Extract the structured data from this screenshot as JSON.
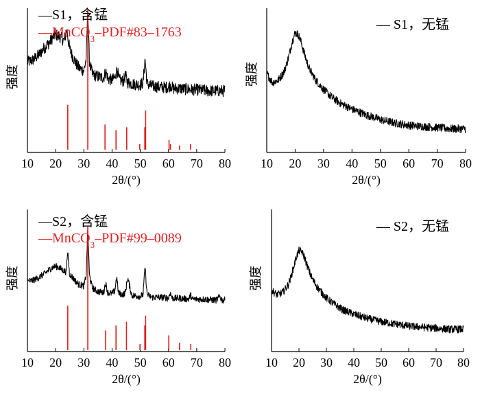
{
  "chart_data": [
    {
      "type": "line",
      "panel": "top-left",
      "xlabel": "2θ/(°)",
      "ylabel": "强度",
      "xlim": [
        10,
        80
      ],
      "xticks": [
        10,
        20,
        30,
        40,
        50,
        60,
        70,
        80
      ],
      "legend": [
        "—S1，含锰",
        "—MnCO₃–PDF#83–1763"
      ],
      "legend_position": "top-left",
      "series": [
        {
          "name": "S1，含锰",
          "color": "#000000",
          "noise": 0.05,
          "x": [
            10,
            12,
            14,
            16,
            18,
            19,
            20,
            21,
            22,
            23,
            24,
            24.5,
            25,
            26,
            27,
            28,
            29,
            30,
            30.8,
            31.4,
            32,
            33,
            35,
            37,
            37.8,
            38.6,
            40,
            41,
            41.8,
            42.5,
            44,
            44.8,
            45.5,
            47,
            50,
            51,
            51.7,
            52.4,
            54,
            58,
            60,
            60.8,
            61.6,
            64,
            68,
            70,
            74,
            80
          ],
          "y": [
            0.56,
            0.58,
            0.62,
            0.68,
            0.73,
            0.77,
            0.79,
            0.78,
            0.76,
            0.74,
            0.83,
            0.74,
            0.67,
            0.61,
            0.56,
            0.52,
            0.5,
            0.49,
            0.58,
            1.0,
            0.56,
            0.46,
            0.44,
            0.43,
            0.48,
            0.42,
            0.41,
            0.43,
            0.5,
            0.41,
            0.4,
            0.45,
            0.39,
            0.38,
            0.37,
            0.39,
            0.59,
            0.38,
            0.36,
            0.35,
            0.35,
            0.37,
            0.34,
            0.34,
            0.33,
            0.33,
            0.32,
            0.32
          ]
        },
        {
          "name": "MnCO₃–PDF#83–1763",
          "type": "stick",
          "color": "#e02020",
          "x": [
            24.3,
            31.4,
            37.5,
            41.4,
            45.2,
            49.8,
            51.6,
            51.9,
            60.2,
            60.7,
            63.9,
            67.8
          ],
          "y": [
            0.32,
            1.0,
            0.18,
            0.14,
            0.16,
            0.04,
            0.16,
            0.28,
            0.07,
            0.04,
            0.03,
            0.04
          ]
        }
      ]
    },
    {
      "type": "line",
      "panel": "top-right",
      "xlabel": "2θ/(°)",
      "ylabel": "强度",
      "xlim": [
        10,
        80
      ],
      "xticks": [
        10,
        20,
        30,
        40,
        50,
        60,
        70,
        80
      ],
      "legend": [
        "— S1，无锰"
      ],
      "legend_position": "top-right",
      "series": [
        {
          "name": "S1，无锰",
          "color": "#000000",
          "noise": 0.035,
          "x": [
            10,
            12,
            14,
            16,
            17,
            18,
            19,
            20,
            21,
            22,
            23,
            24,
            25,
            27,
            30,
            33,
            36,
            40,
            45,
            50,
            55,
            60,
            65,
            70,
            75,
            80
          ],
          "y": [
            0.59,
            0.51,
            0.53,
            0.6,
            0.67,
            0.76,
            0.87,
            0.94,
            0.93,
            0.87,
            0.78,
            0.7,
            0.63,
            0.54,
            0.45,
            0.38,
            0.33,
            0.28,
            0.23,
            0.19,
            0.16,
            0.14,
            0.13,
            0.12,
            0.11,
            0.11
          ]
        }
      ]
    },
    {
      "type": "line",
      "panel": "bottom-left",
      "xlabel": "2θ/(°)",
      "ylabel": "强度",
      "xlim": [
        10,
        80
      ],
      "xticks": [
        10,
        20,
        30,
        40,
        50,
        60,
        70,
        80
      ],
      "legend": [
        "—S2，含锰",
        "—MnCO₃–PDF#99–0089"
      ],
      "legend_position": "top-left",
      "series": [
        {
          "name": "S2，含锰",
          "color": "#000000",
          "noise": 0.035,
          "x": [
            10,
            12,
            14,
            16,
            18,
            19,
            20,
            21,
            22,
            23,
            23.7,
            24.3,
            24.9,
            26,
            28,
            30,
            30.8,
            31.4,
            32,
            33,
            35,
            37,
            37.7,
            38.5,
            40,
            41,
            41.6,
            42.3,
            44,
            44.8,
            45.5,
            47,
            50,
            51,
            51.7,
            52.4,
            54,
            58,
            60,
            60.6,
            61.3,
            64,
            67.2,
            67.8,
            68.4,
            72,
            77,
            78.2,
            79,
            80
          ],
          "y": [
            0.44,
            0.45,
            0.48,
            0.52,
            0.57,
            0.59,
            0.6,
            0.59,
            0.57,
            0.55,
            0.54,
            0.76,
            0.52,
            0.48,
            0.41,
            0.39,
            0.5,
            1.0,
            0.5,
            0.37,
            0.33,
            0.32,
            0.42,
            0.32,
            0.31,
            0.34,
            0.49,
            0.31,
            0.3,
            0.33,
            0.48,
            0.29,
            0.28,
            0.3,
            0.6,
            0.3,
            0.27,
            0.27,
            0.26,
            0.32,
            0.26,
            0.26,
            0.25,
            0.3,
            0.25,
            0.25,
            0.24,
            0.28,
            0.24,
            0.24
          ]
        },
        {
          "name": "MnCO₃–PDF#99–0089",
          "type": "stick",
          "color": "#e02020",
          "x": [
            24.3,
            31.4,
            37.7,
            41.4,
            45.1,
            49.9,
            51.6,
            51.9,
            60.1,
            63.9,
            67.9
          ],
          "y": [
            0.36,
            1.0,
            0.16,
            0.2,
            0.23,
            0.05,
            0.2,
            0.28,
            0.12,
            0.06,
            0.05
          ]
        }
      ]
    },
    {
      "type": "line",
      "panel": "bottom-right",
      "xlabel": "2θ/(°)",
      "ylabel": "强度",
      "xlim": [
        10,
        80
      ],
      "xticks": [
        10,
        20,
        30,
        40,
        50,
        60,
        70,
        80
      ],
      "legend": [
        "— S2，无锰"
      ],
      "legend_position": "top-right",
      "series": [
        {
          "name": "S2，无锰",
          "color": "#000000",
          "noise": 0.035,
          "x": [
            10,
            12,
            14,
            16,
            17,
            18,
            19,
            20,
            21,
            22,
            23,
            24,
            25,
            27,
            30,
            33,
            36,
            40,
            45,
            50,
            55,
            60,
            65,
            70,
            75,
            80
          ],
          "y": [
            0.49,
            0.45,
            0.47,
            0.54,
            0.61,
            0.7,
            0.8,
            0.86,
            0.85,
            0.8,
            0.72,
            0.65,
            0.59,
            0.51,
            0.42,
            0.36,
            0.31,
            0.27,
            0.23,
            0.2,
            0.18,
            0.16,
            0.15,
            0.14,
            0.13,
            0.13
          ]
        }
      ]
    }
  ]
}
